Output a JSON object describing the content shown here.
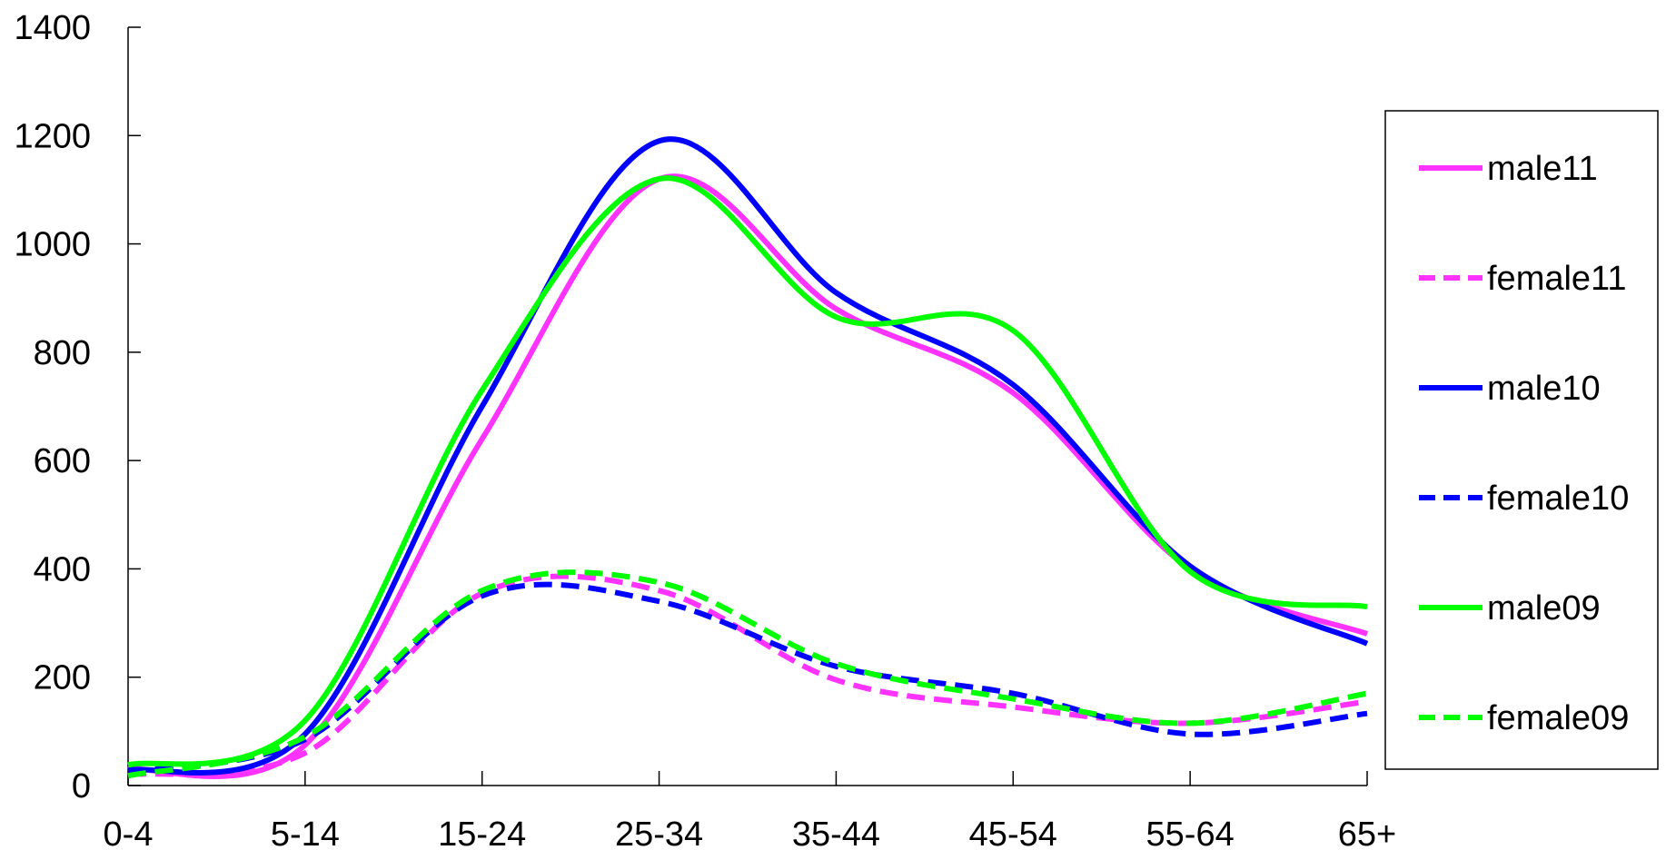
{
  "chart_data": {
    "type": "line",
    "title": "",
    "xlabel": "",
    "ylabel": "",
    "categories": [
      "0-4",
      "5-14",
      "15-24",
      "25-34",
      "35-44",
      "45-54",
      "55-64",
      "65+"
    ],
    "ylim": [
      0,
      1400
    ],
    "yticks": [
      "0",
      "200",
      "400",
      "600",
      "800",
      "1000",
      "1200",
      "1400"
    ],
    "grid": false,
    "legend": "right",
    "smooth": true,
    "series": [
      {
        "name": "male11",
        "color": "#FF33FF",
        "dash": "solid",
        "values": [
          30,
          75,
          640,
          1120,
          880,
          725,
          400,
          280
        ]
      },
      {
        "name": "female11",
        "color": "#FF33FF",
        "dash": "dashed",
        "values": [
          20,
          60,
          355,
          360,
          195,
          145,
          115,
          155
        ]
      },
      {
        "name": "male10",
        "color": "#0000FF",
        "dash": "solid",
        "values": [
          28,
          95,
          700,
          1190,
          910,
          740,
          405,
          262
        ]
      },
      {
        "name": "female10",
        "color": "#0000FF",
        "dash": "dashed",
        "values": [
          25,
          85,
          350,
          340,
          220,
          170,
          95,
          133
        ]
      },
      {
        "name": "male09",
        "color": "#00FF00",
        "dash": "solid",
        "values": [
          38,
          120,
          730,
          1120,
          865,
          840,
          395,
          330
        ]
      },
      {
        "name": "female09",
        "color": "#00FF00",
        "dash": "dashed",
        "values": [
          18,
          90,
          360,
          375,
          225,
          160,
          115,
          170
        ]
      }
    ]
  }
}
